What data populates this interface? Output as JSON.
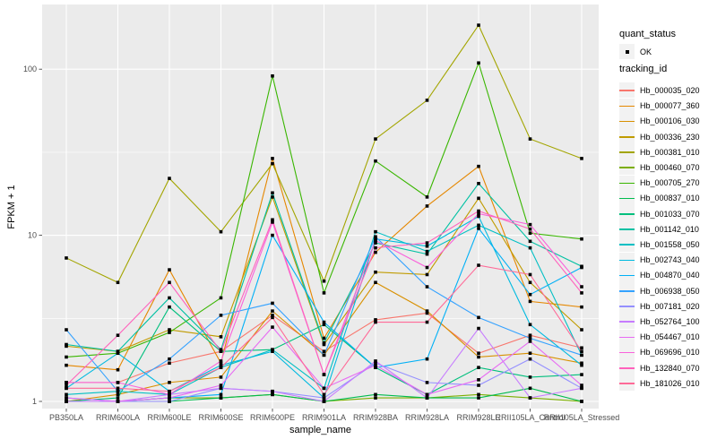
{
  "chart_data": {
    "type": "line",
    "title": "",
    "x_axis": {
      "label": "sample_name",
      "categories": [
        "PB350LA",
        "RRIM600LA",
        "RRIM600LE",
        "RRIM600SE",
        "RRIM600PE",
        "RRIM901LA",
        "RRIM928BA",
        "RRIM928LA",
        "RRIM928LE",
        "RRII105LA_Control",
        "RRII105LA_Stressed"
      ]
    },
    "y_axis": {
      "label": "FPKM + 1",
      "scale": "log10",
      "ticks": [
        100,
        10,
        1
      ],
      "tick_labels": [
        "100",
        "10",
        "1"
      ],
      "minor_gridlines": [
        31.623,
        3.1623
      ],
      "range_shown": [
        1,
        245
      ]
    },
    "grid": {
      "major_color": "#FFFFFF",
      "minor_color": "#FFFFFF",
      "panel_color": "#EBEBEB"
    },
    "legend_position": "right",
    "point_marker": "small black square (quant_status OK)",
    "series": [
      {
        "name": "Hb_000035_020",
        "color": "#F8766D",
        "values": [
          1.3,
          1.3,
          1.7,
          2.0,
          3.3,
          2.0,
          3.1,
          3.4,
          1.95,
          2.5,
          2.1
        ]
      },
      {
        "name": "Hb_000077_360",
        "color": "#E58700",
        "values": [
          1.65,
          1.55,
          6.2,
          1.7,
          29.0,
          2.4,
          7.9,
          15.0,
          26.0,
          4.0,
          3.7
        ]
      },
      {
        "name": "Hb_000106_030",
        "color": "#D89000",
        "values": [
          1.0,
          1.1,
          1.3,
          1.4,
          3.5,
          1.9,
          5.2,
          3.5,
          1.85,
          1.95,
          1.7
        ]
      },
      {
        "name": "Hb_000336_230",
        "color": "#C09B00",
        "values": [
          2.15,
          2.0,
          2.7,
          2.45,
          17.0,
          2.2,
          6.0,
          5.8,
          16.7,
          5.2,
          2.7
        ]
      },
      {
        "name": "Hb_000381_010",
        "color": "#A3A500",
        "values": [
          7.3,
          5.2,
          22.0,
          10.5,
          27.0,
          5.3,
          38.0,
          65.0,
          184.0,
          38.0,
          29.0
        ]
      },
      {
        "name": "Hb_000460_070",
        "color": "#7CAE00",
        "values": [
          1.0,
          1.0,
          1.05,
          1.05,
          1.1,
          1.0,
          1.05,
          1.05,
          1.1,
          1.05,
          1.0
        ]
      },
      {
        "name": "Hb_000705_270",
        "color": "#39B600",
        "values": [
          1.85,
          1.95,
          2.6,
          4.2,
          91.0,
          4.5,
          28.0,
          17.0,
          109.0,
          10.3,
          9.5
        ]
      },
      {
        "name": "Hb_000837_010",
        "color": "#00BB4E",
        "values": [
          1.0,
          1.0,
          1.0,
          1.05,
          1.1,
          1.0,
          1.1,
          1.05,
          1.05,
          1.2,
          1.0
        ]
      },
      {
        "name": "Hb_001033_070",
        "color": "#00BF7D",
        "values": [
          1.0,
          1.05,
          3.7,
          2.0,
          2.05,
          2.9,
          1.6,
          1.1,
          1.6,
          1.4,
          1.45
        ]
      },
      {
        "name": "Hb_001142_010",
        "color": "#00C1A3",
        "values": [
          2.2,
          2.0,
          4.2,
          2.05,
          18.0,
          2.25,
          9.0,
          7.7,
          20.5,
          9.2,
          6.5
        ]
      },
      {
        "name": "Hb_001558_050",
        "color": "#00BFC4",
        "values": [
          1.1,
          1.15,
          1.1,
          1.6,
          2.05,
          1.2,
          10.5,
          8.0,
          11.5,
          8.4,
          1.9
        ]
      },
      {
        "name": "Hb_002743_040",
        "color": "#00BAE0",
        "values": [
          1.2,
          1.95,
          1.15,
          1.65,
          2.0,
          1.05,
          9.5,
          8.6,
          13.0,
          2.9,
          1.65
        ]
      },
      {
        "name": "Hb_004870_040",
        "color": "#00B0F6",
        "values": [
          1.05,
          1.0,
          1.05,
          1.1,
          10.0,
          3.0,
          1.6,
          1.8,
          11.0,
          4.4,
          6.4
        ]
      },
      {
        "name": "Hb_006938_050",
        "color": "#35A2FF",
        "values": [
          2.7,
          1.15,
          1.8,
          3.3,
          3.9,
          1.9,
          9.8,
          4.9,
          3.2,
          2.4,
          1.9
        ]
      },
      {
        "name": "Hb_007181_020",
        "color": "#9590FF",
        "values": [
          1.0,
          1.0,
          1.0,
          1.2,
          1.15,
          1.05,
          1.7,
          1.3,
          1.25,
          1.8,
          1.2
        ]
      },
      {
        "name": "Hb_052764_100",
        "color": "#C77CFF",
        "values": [
          1.0,
          1.0,
          1.1,
          1.2,
          1.15,
          1.0,
          1.75,
          1.05,
          2.75,
          1.05,
          1.2
        ]
      },
      {
        "name": "Hb_054467_010",
        "color": "#E76BF3",
        "values": [
          1.05,
          1.0,
          1.05,
          1.25,
          2.8,
          1.2,
          1.65,
          1.1,
          1.35,
          2.3,
          1.25
        ]
      },
      {
        "name": "Hb_069696_010",
        "color": "#FA62DB",
        "values": [
          1.3,
          1.3,
          1.1,
          1.75,
          12.0,
          1.45,
          9.3,
          6.4,
          13.5,
          11.6,
          4.9
        ]
      },
      {
        "name": "Hb_132840_070",
        "color": "#FF62BC",
        "values": [
          1.25,
          2.5,
          5.2,
          2.0,
          12.4,
          1.45,
          8.4,
          9.0,
          14.0,
          10.9,
          4.5
        ]
      },
      {
        "name": "Hb_181026_010",
        "color": "#FF6A98",
        "values": [
          1.2,
          1.2,
          1.15,
          1.6,
          3.2,
          1.1,
          3.0,
          3.0,
          6.6,
          5.8,
          2.0
        ]
      }
    ]
  },
  "legend": {
    "quant_status": {
      "title": "quant_status",
      "items": [
        {
          "label": "OK",
          "marker": "black-point"
        }
      ]
    },
    "tracking_id": {
      "title": "tracking_id"
    }
  },
  "axes_text": {
    "x_title": "sample_name",
    "y_title": "FPKM + 1"
  },
  "colors": {
    "panel_background": "#EBEBEB",
    "gridline": "#FFFFFF",
    "tick_label": "#4D4D4D",
    "tick_mark": "#333333",
    "legend_key_background": "#F2F2F2",
    "point": "#000000"
  }
}
